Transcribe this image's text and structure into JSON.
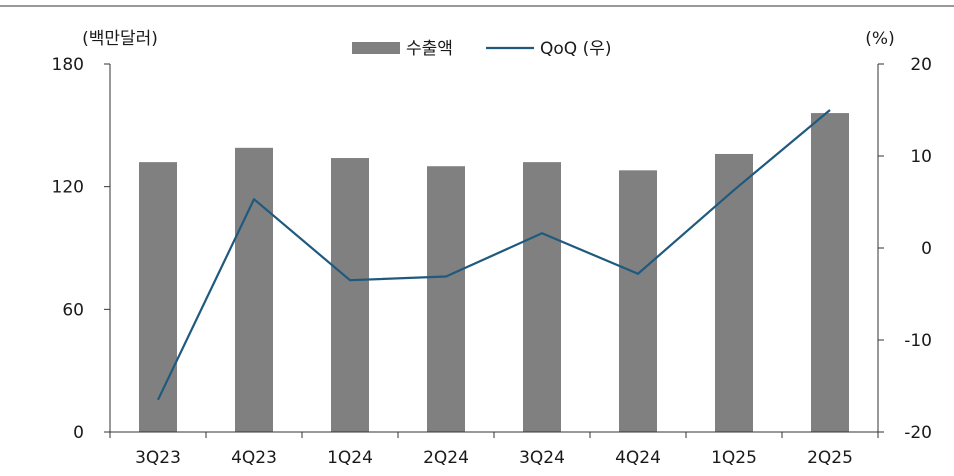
{
  "chart_data": {
    "type": "bar",
    "categories": [
      "3Q23",
      "4Q23",
      "1Q24",
      "2Q24",
      "3Q24",
      "4Q24",
      "1Q25",
      "2Q25"
    ],
    "series": [
      {
        "name": "수출액",
        "type": "bar",
        "axis": "left",
        "color": "#808080",
        "values": [
          132,
          139,
          134,
          130,
          132,
          128,
          136,
          156
        ]
      },
      {
        "name": "QoQ (우)",
        "type": "line",
        "axis": "right",
        "color": "#1f5a7e",
        "values": [
          -16.5,
          5.3,
          -3.5,
          -3.1,
          1.6,
          -2.8,
          6.3,
          15.0
        ]
      }
    ],
    "left_axis": {
      "label": "(백만달러)",
      "min": 0,
      "max": 180,
      "ticks": [
        0,
        60,
        120,
        180
      ]
    },
    "right_axis": {
      "label": "(%)",
      "min": -20,
      "max": 20,
      "ticks": [
        -20,
        -10,
        0,
        10,
        20
      ]
    },
    "legend_position": "top-center",
    "grid": false
  }
}
